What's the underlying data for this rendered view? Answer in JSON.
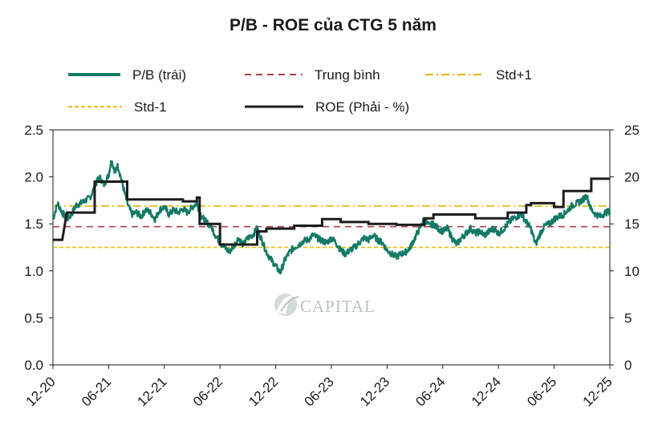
{
  "chart_data": {
    "type": "line",
    "title": "P/B - ROE của CTG 5 năm",
    "x_tick_labels": [
      "12-20",
      "06-21",
      "12-21",
      "06-22",
      "12-22",
      "06-23",
      "12-23",
      "06-24",
      "12-24",
      "06-25",
      "12-25"
    ],
    "x_range": [
      0,
      60
    ],
    "left_axis": {
      "ylim": [
        0,
        2.5
      ],
      "ticks": [
        "0.0",
        "0.5",
        "1.0",
        "1.5",
        "2.0",
        "2.5"
      ]
    },
    "right_axis": {
      "ylim": [
        0,
        25
      ],
      "ticks": [
        "0",
        "5",
        "10",
        "15",
        "20",
        "25"
      ]
    },
    "legend": {
      "pb": "P/B (trái)",
      "mean": "Trung bình",
      "std_plus": "Std+1",
      "std_minus": "Std-1",
      "roe": "ROE (Phải - %)"
    },
    "colors": {
      "pb": "#137a66",
      "mean": "#b2404a",
      "std_plus": "#e2b400",
      "std_minus": "#efb900",
      "roe": "#1c1c1c"
    },
    "reference_lines": {
      "mean": 1.47,
      "std_plus": 1.69,
      "std_minus": 1.25
    },
    "pb_anchors": [
      [
        0,
        1.55
      ],
      [
        0.5,
        1.72
      ],
      [
        1,
        1.62
      ],
      [
        1.5,
        1.55
      ],
      [
        2,
        1.6
      ],
      [
        2.5,
        1.7
      ],
      [
        3,
        1.72
      ],
      [
        3.5,
        1.75
      ],
      [
        4,
        1.78
      ],
      [
        4.5,
        1.9
      ],
      [
        5,
        2.0
      ],
      [
        5.5,
        1.92
      ],
      [
        6,
        2.02
      ],
      [
        6.3,
        2.18
      ],
      [
        6.7,
        2.05
      ],
      [
        7,
        2.12
      ],
      [
        7.5,
        1.92
      ],
      [
        8,
        1.72
      ],
      [
        8.5,
        1.6
      ],
      [
        9,
        1.62
      ],
      [
        9.5,
        1.58
      ],
      [
        10,
        1.65
      ],
      [
        10.5,
        1.62
      ],
      [
        11,
        1.55
      ],
      [
        11.5,
        1.65
      ],
      [
        12,
        1.68
      ],
      [
        12.5,
        1.6
      ],
      [
        13,
        1.65
      ],
      [
        13.5,
        1.62
      ],
      [
        14,
        1.66
      ],
      [
        14.5,
        1.62
      ],
      [
        15,
        1.68
      ],
      [
        15.5,
        1.72
      ],
      [
        16,
        1.58
      ],
      [
        16.5,
        1.52
      ],
      [
        17,
        1.48
      ],
      [
        17.5,
        1.38
      ],
      [
        18,
        1.3
      ],
      [
        18.5,
        1.25
      ],
      [
        19,
        1.2
      ],
      [
        19.5,
        1.27
      ],
      [
        20,
        1.35
      ],
      [
        20.5,
        1.28
      ],
      [
        21,
        1.35
      ],
      [
        21.5,
        1.38
      ],
      [
        22,
        1.45
      ],
      [
        22.5,
        1.33
      ],
      [
        23,
        1.2
      ],
      [
        23.5,
        1.12
      ],
      [
        24,
        1.05
      ],
      [
        24.5,
        0.98
      ],
      [
        25,
        1.12
      ],
      [
        25.5,
        1.2
      ],
      [
        26,
        1.25
      ],
      [
        26.5,
        1.28
      ],
      [
        27,
        1.32
      ],
      [
        27.5,
        1.33
      ],
      [
        28,
        1.38
      ],
      [
        28.5,
        1.35
      ],
      [
        29,
        1.32
      ],
      [
        29.5,
        1.3
      ],
      [
        30,
        1.35
      ],
      [
        30.5,
        1.3
      ],
      [
        31,
        1.22
      ],
      [
        31.5,
        1.18
      ],
      [
        32,
        1.22
      ],
      [
        32.5,
        1.25
      ],
      [
        33,
        1.3
      ],
      [
        33.5,
        1.35
      ],
      [
        34,
        1.33
      ],
      [
        34.5,
        1.38
      ],
      [
        35,
        1.33
      ],
      [
        35.5,
        1.3
      ],
      [
        36,
        1.22
      ],
      [
        36.5,
        1.18
      ],
      [
        37,
        1.15
      ],
      [
        37.5,
        1.18
      ],
      [
        38,
        1.2
      ],
      [
        38.5,
        1.25
      ],
      [
        39,
        1.35
      ],
      [
        39.5,
        1.45
      ],
      [
        40,
        1.55
      ],
      [
        40.5,
        1.48
      ],
      [
        41,
        1.5
      ],
      [
        41.5,
        1.45
      ],
      [
        42,
        1.42
      ],
      [
        42.5,
        1.45
      ],
      [
        43,
        1.35
      ],
      [
        43.5,
        1.28
      ],
      [
        44,
        1.35
      ],
      [
        44.5,
        1.4
      ],
      [
        45,
        1.45
      ],
      [
        45.5,
        1.4
      ],
      [
        46,
        1.42
      ],
      [
        46.5,
        1.38
      ],
      [
        47,
        1.42
      ],
      [
        47.5,
        1.45
      ],
      [
        48,
        1.4
      ],
      [
        48.5,
        1.44
      ],
      [
        49,
        1.5
      ],
      [
        49.5,
        1.55
      ],
      [
        50,
        1.58
      ],
      [
        50.5,
        1.6
      ],
      [
        51,
        1.52
      ],
      [
        51.5,
        1.45
      ],
      [
        52,
        1.28
      ],
      [
        52.5,
        1.4
      ],
      [
        53,
        1.48
      ],
      [
        53.5,
        1.5
      ],
      [
        54,
        1.55
      ],
      [
        54.5,
        1.58
      ],
      [
        55,
        1.6
      ],
      [
        55.5,
        1.65
      ],
      [
        56,
        1.7
      ],
      [
        56.5,
        1.72
      ],
      [
        57,
        1.75
      ],
      [
        57.5,
        1.8
      ],
      [
        58,
        1.65
      ],
      [
        58.5,
        1.6
      ],
      [
        59,
        1.58
      ],
      [
        59.5,
        1.62
      ],
      [
        60,
        1.63
      ]
    ],
    "roe_steps": [
      [
        0,
        13.3
      ],
      [
        1,
        13.3
      ],
      [
        1.5,
        16.2
      ],
      [
        4.5,
        16.2
      ],
      [
        4.5,
        19.5
      ],
      [
        8,
        19.5
      ],
      [
        8,
        17.6
      ],
      [
        14,
        17.6
      ],
      [
        14,
        17.4
      ],
      [
        15.5,
        17.4
      ],
      [
        15.5,
        17.8
      ],
      [
        15.8,
        17.8
      ],
      [
        15.8,
        15.0
      ],
      [
        18,
        15.0
      ],
      [
        18,
        12.8
      ],
      [
        22,
        12.8
      ],
      [
        22,
        14.2
      ],
      [
        23,
        14.2
      ],
      [
        23,
        14.5
      ],
      [
        26,
        14.5
      ],
      [
        26,
        14.8
      ],
      [
        29,
        14.8
      ],
      [
        29,
        15.5
      ],
      [
        31,
        15.5
      ],
      [
        31,
        15.2
      ],
      [
        34,
        15.2
      ],
      [
        34,
        15.0
      ],
      [
        37,
        15.0
      ],
      [
        37,
        14.9
      ],
      [
        40,
        14.9
      ],
      [
        40,
        15.6
      ],
      [
        41,
        15.6
      ],
      [
        41,
        16.0
      ],
      [
        45.5,
        16.0
      ],
      [
        45.5,
        15.6
      ],
      [
        49,
        15.6
      ],
      [
        49,
        16.2
      ],
      [
        51,
        16.2
      ],
      [
        51,
        17.0
      ],
      [
        51.5,
        17.0
      ],
      [
        51.5,
        17.2
      ],
      [
        54,
        17.2
      ],
      [
        54,
        16.8
      ],
      [
        55,
        16.8
      ],
      [
        55,
        18.5
      ],
      [
        58,
        18.5
      ],
      [
        58,
        19.8
      ],
      [
        60,
        19.8
      ]
    ],
    "watermark": "CAPITAL"
  }
}
